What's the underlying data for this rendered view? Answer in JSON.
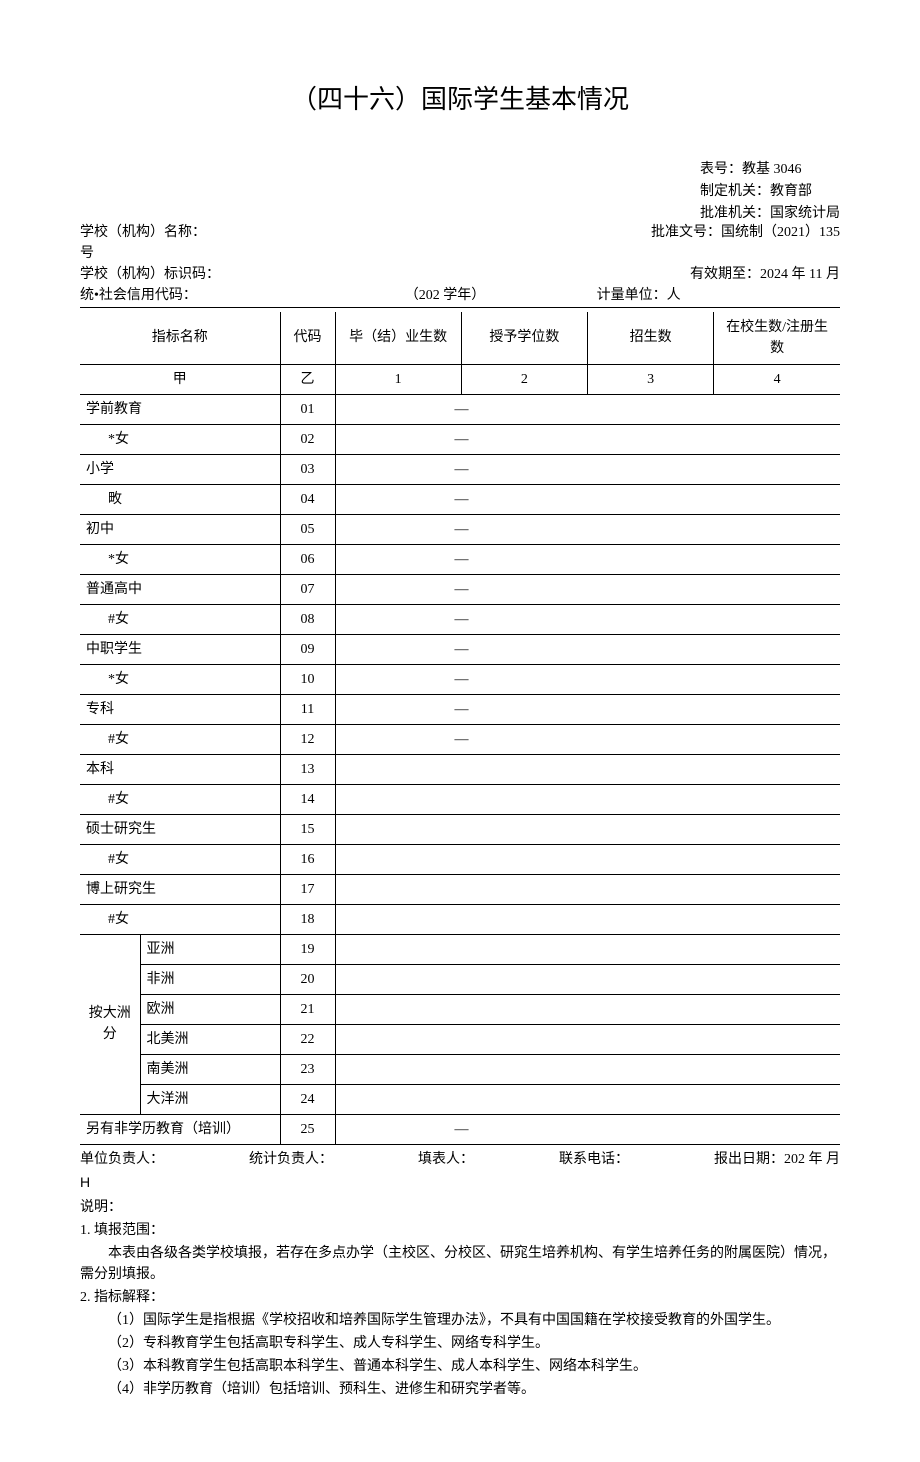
{
  "title": "（四十六）国际学生基本情况",
  "meta": {
    "table_no": "表号：教基 3046",
    "est_org": "制定机关：教育部",
    "approval_org": "批准机关：国家统计局",
    "school_name_label": "学校（机构）名称：",
    "approval_doc": "批准文号：国统制（2021）135",
    "hao": "号",
    "school_code_label": "学校（机构）标识码：",
    "valid_until": "有效期至：2024 年 11 月",
    "social_credit_label": "统•社会信用代码：",
    "academic_year": "（202 学年）",
    "unit_label": "计量单位：人"
  },
  "headers": {
    "indicator": "指标名称",
    "code": "代码",
    "grad": "毕（结）业生数",
    "degree": "授予学位数",
    "enroll": "招生数",
    "inschool": "在校生数/注册生数",
    "jia": "甲",
    "yi": "乙",
    "c1": "1",
    "c2": "2",
    "c3": "3",
    "c4": "4"
  },
  "rows": [
    {
      "name": "学前教育",
      "code": "01",
      "dash": true
    },
    {
      "name": "*女",
      "code": "02",
      "dash": true,
      "indent": 1
    },
    {
      "name": "小学",
      "code": "03",
      "dash": true
    },
    {
      "name": "畋",
      "code": "04",
      "dash": true,
      "indent": 1
    },
    {
      "name": "初中",
      "code": "05",
      "dash": true
    },
    {
      "name": "*女",
      "code": "06",
      "dash": true,
      "indent": 1
    },
    {
      "name": "普通高中",
      "code": "07",
      "dash": true
    },
    {
      "name": "#女",
      "code": "08",
      "dash": true,
      "indent": 1
    },
    {
      "name": "中职学生",
      "code": "09",
      "dash": true
    },
    {
      "name": "*女",
      "code": "10",
      "dash": true,
      "indent": 1
    },
    {
      "name": "专科",
      "code": "11",
      "dash": true
    },
    {
      "name": "#女",
      "code": "12",
      "dash": true,
      "indent": 1
    },
    {
      "name": "本科",
      "code": "13"
    },
    {
      "name": "#女",
      "code": "14",
      "indent": 1
    },
    {
      "name": "硕士研究生",
      "code": "15"
    },
    {
      "name": "#女",
      "code": "16",
      "indent": 1
    },
    {
      "name": "博上研究生",
      "code": "17"
    },
    {
      "name": "#女",
      "code": "18",
      "indent": 1
    }
  ],
  "continent_label": "按大洲分",
  "continents": [
    {
      "name": "亚洲",
      "code": "19"
    },
    {
      "name": "非洲",
      "code": "20"
    },
    {
      "name": "欧洲",
      "code": "21"
    },
    {
      "name": "北美洲",
      "code": "22"
    },
    {
      "name": "南美洲",
      "code": "23"
    },
    {
      "name": "大洋洲",
      "code": "24"
    }
  ],
  "nondegree": {
    "name": "另有非学历教育（培训）",
    "code": "25"
  },
  "footer": {
    "unit_leader": "单位负责人：",
    "stat_leader": "统计负责人：",
    "filler": "填表人：",
    "phone": "联系电话：",
    "report_date": "报出日期：202 年 月",
    "h": "H"
  },
  "notes": {
    "title": "说明：",
    "s1_title": "1. 填报范围：",
    "s1_body": "本表由各级各类学校填报，若存在多点办学（主校区、分校区、研窕生培养机构、有学生培养任务的附属医院）情况，需分别填报。",
    "s2_title": "2. 指标解释：",
    "s2_1": "（1）国际学生是指根据《学校招收和培养国际学生管理办法》，不具有中国国籍在学校接受教育的外国学生。",
    "s2_2": "（2）专科教育学生包括高职专科学生、成人专科学生、网络专科学生。",
    "s2_3": "（3）本科教育学生包括高职本科学生、普通本科学生、成人本科学生、网络本科学生。",
    "s2_4": "（4）非学历教育（培训）包括培训、预科生、进修生和研究学者等。"
  },
  "dash": "—"
}
